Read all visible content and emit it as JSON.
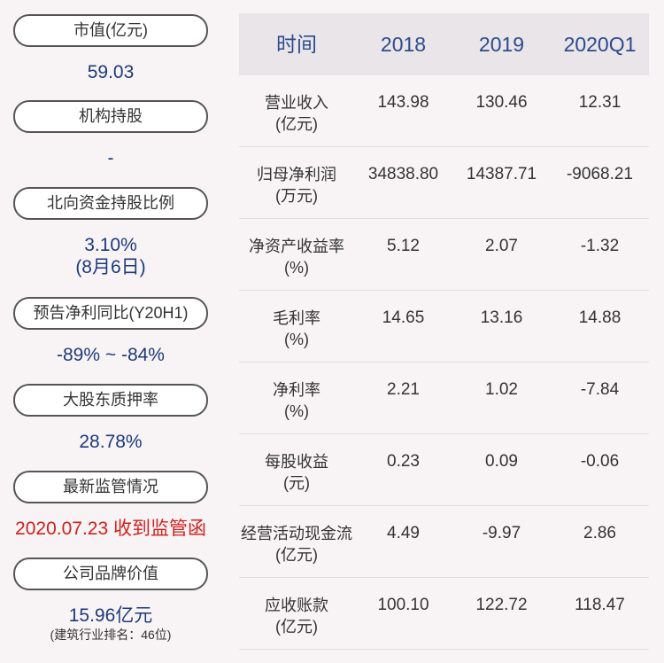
{
  "left_panel": [
    {
      "label": "市值(亿元)",
      "lines": [
        "59.03"
      ]
    },
    {
      "label": "机构持股",
      "lines": [
        "-"
      ]
    },
    {
      "label": "北向资金持股比例",
      "lines": [
        "3.10%",
        "(8月6日)"
      ]
    },
    {
      "label": "预告净利同比(Y20H1)",
      "lines": [
        "-89% ~ -84%"
      ]
    },
    {
      "label": "大股东质押率",
      "lines": [
        "28.78%"
      ]
    },
    {
      "label": "最新监管情况",
      "lines": [
        "2020.07.23 收到监管函"
      ]
    },
    {
      "label": "公司品牌价值",
      "lines": [
        "15.96亿元"
      ],
      "note": "(建筑行业排名：46位)"
    }
  ],
  "table": {
    "header": [
      "时间",
      "2018",
      "2019",
      "2020Q1"
    ],
    "rows": [
      {
        "label": [
          "营业收入",
          "(亿元)"
        ],
        "values": [
          "143.98",
          "130.46",
          "12.31"
        ]
      },
      {
        "label": [
          "归母净利润",
          "(万元)"
        ],
        "values": [
          "34838.80",
          "14387.71",
          "-9068.21"
        ]
      },
      {
        "label": [
          "净资产收益率",
          "(%)"
        ],
        "values": [
          "5.12",
          "2.07",
          "-1.32"
        ]
      },
      {
        "label": [
          "毛利率",
          "(%)"
        ],
        "values": [
          "14.65",
          "13.16",
          "14.88"
        ]
      },
      {
        "label": [
          "净利率",
          "(%)"
        ],
        "values": [
          "2.21",
          "1.02",
          "-7.84"
        ]
      },
      {
        "label": [
          "每股收益",
          "(元)"
        ],
        "values": [
          "0.23",
          "0.09",
          "-0.06"
        ]
      },
      {
        "label": [
          "经营活动现金流",
          "(亿元)"
        ],
        "values": [
          "4.49",
          "-9.97",
          "2.86"
        ]
      },
      {
        "label": [
          "应收账款",
          "(亿元)"
        ],
        "values": [
          "100.10",
          "122.72",
          "118.47"
        ]
      }
    ]
  }
}
